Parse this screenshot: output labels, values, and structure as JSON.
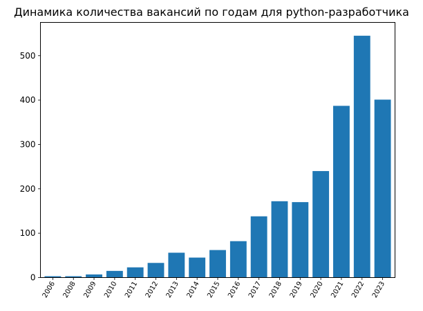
{
  "chart_data": {
    "type": "bar",
    "title": "Динамика количества вакансий по годам для python-разработчика",
    "xlabel": "",
    "ylabel": "",
    "categories": [
      "2006",
      "2008",
      "2009",
      "2010",
      "2011",
      "2012",
      "2013",
      "2014",
      "2015",
      "2016",
      "2017",
      "2018",
      "2019",
      "2020",
      "2021",
      "2022",
      "2023"
    ],
    "values": [
      3,
      3,
      7,
      15,
      23,
      33,
      56,
      45,
      62,
      82,
      138,
      172,
      170,
      240,
      387,
      545,
      401
    ],
    "ylim": [
      0,
      575
    ],
    "yticks": [
      0,
      100,
      200,
      300,
      400,
      500
    ],
    "bar_color": "#1f77b4",
    "grid": false,
    "x_tick_rotation_deg": 60
  }
}
